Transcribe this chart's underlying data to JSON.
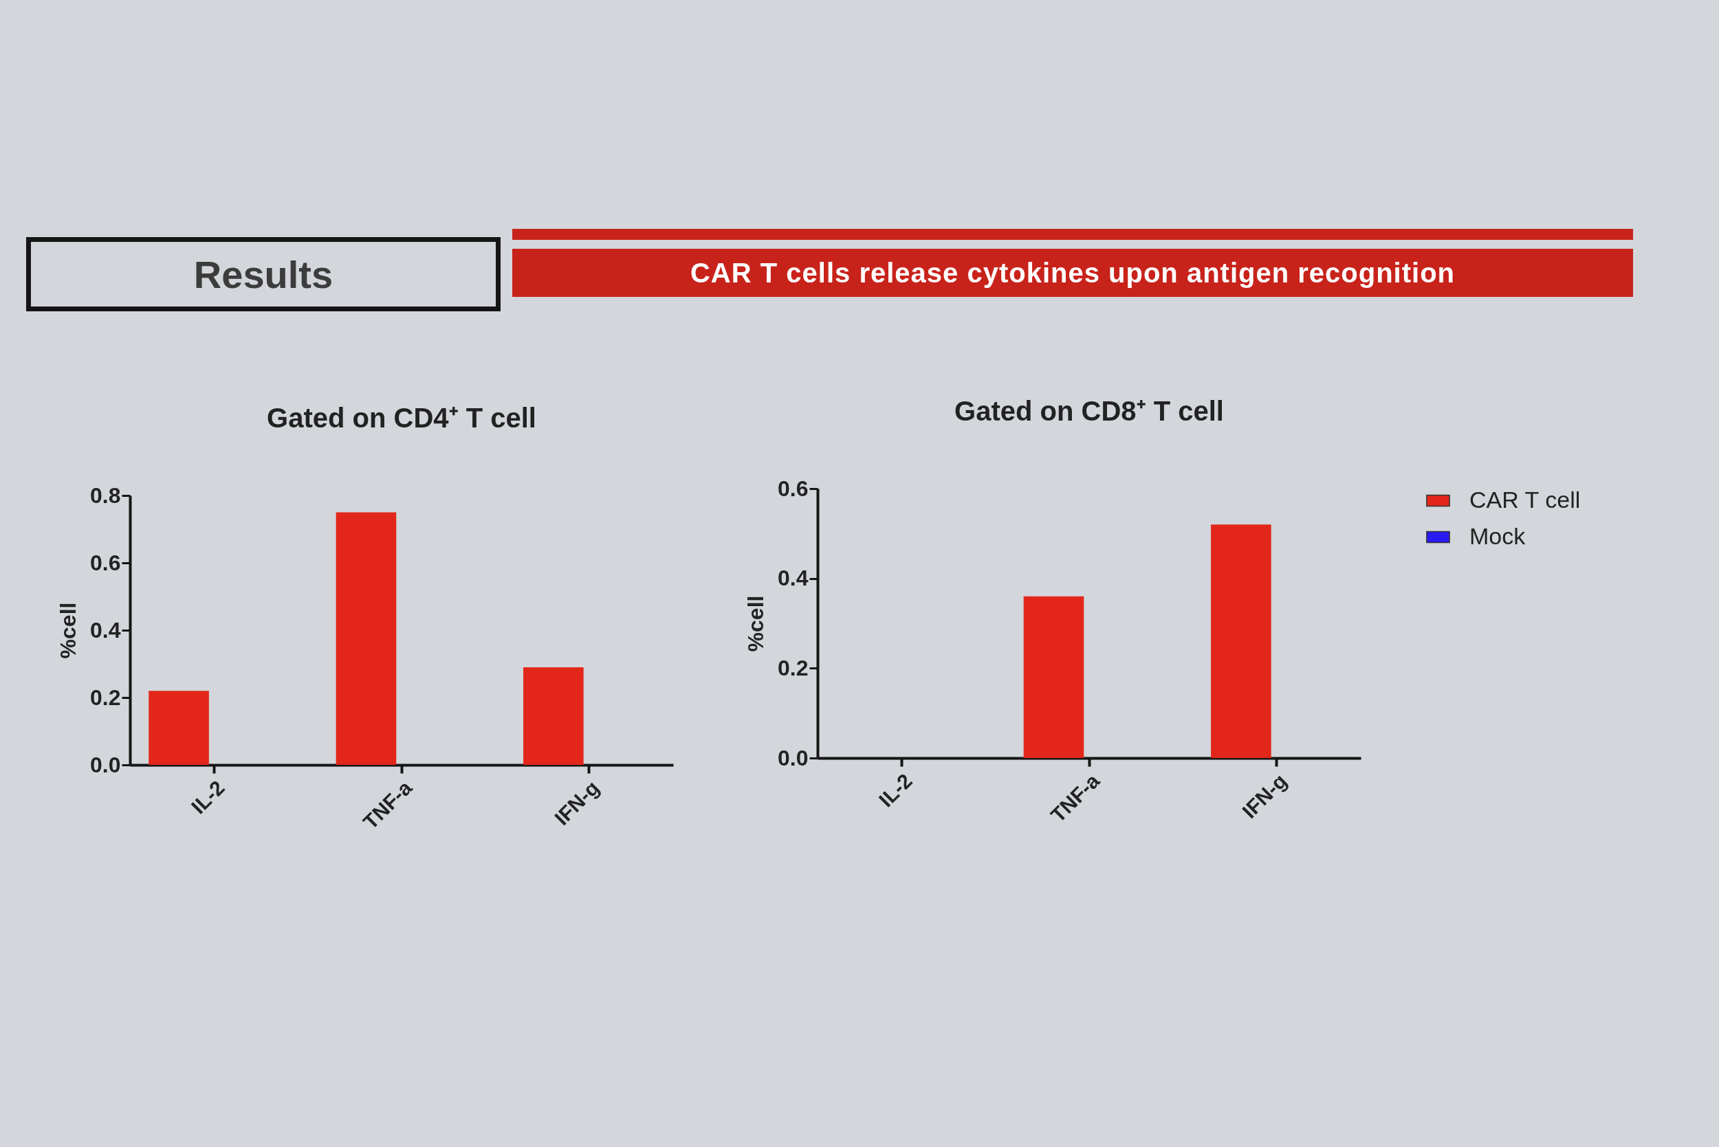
{
  "chart_data": [
    {
      "type": "bar",
      "title": "Gated on CD4⁺ T cell",
      "ylabel": "%cell",
      "categories": [
        "IL-2",
        "TNF-a",
        "IFN-g"
      ],
      "series": [
        {
          "color": "#e2271a",
          "values": [
            0.22,
            0.75,
            0.29
          ]
        },
        {
          "color": "#2a1bf2",
          "values": [
            null,
            null,
            null
          ]
        }
      ],
      "ylim": [
        0,
        0.8
      ],
      "yticks": [
        {
          "value": 0,
          "label": "0.0"
        },
        0.2,
        0.4,
        0.6,
        0.8
      ],
      "annotations": [
        "Results",
        "CAR T cells release cytokines upon antigen recognition"
      ]
    },
    {
      "type": "bar",
      "title": "Gated on CD8⁺ T cell",
      "ylabel": "%cell",
      "categories": [
        "IL-2",
        "TNF-a",
        "IFN-g"
      ],
      "series": [
        {
          "name": "CAR T cell",
          "color": "#e2271a",
          "values": [
            0,
            0.36,
            0.52
          ]
        },
        {
          "name": "Mock",
          "color": "#2a1bf2",
          "values": [
            null,
            null,
            null
          ]
        }
      ],
      "ylim": [
        0,
        0.6
      ],
      "yticks": [
        {
          "value": 0,
          "label": "0.0"
        },
        0.2,
        0.4,
        0.6
      ],
      "legend": "right"
    }
  ]
}
